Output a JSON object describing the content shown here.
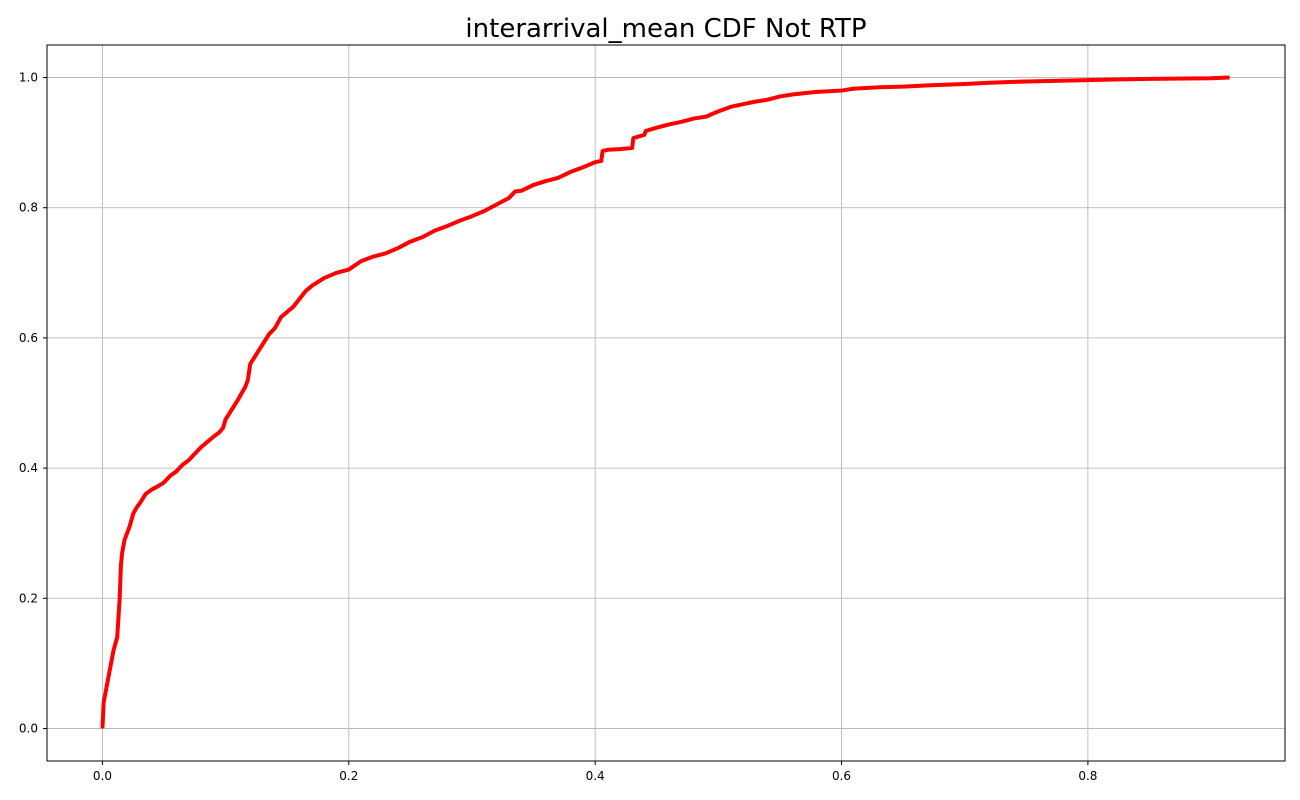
{
  "chart_data": {
    "type": "line",
    "title": "interarrival_mean CDF Not RTP",
    "xlabel": "",
    "ylabel": "",
    "xlim": [
      -0.045,
      0.96
    ],
    "ylim": [
      -0.05,
      1.05
    ],
    "xticks": [
      0.0,
      0.2,
      0.4,
      0.6,
      0.8
    ],
    "xtick_labels": [
      "0.0",
      "0.2",
      "0.4",
      "0.6",
      "0.8"
    ],
    "yticks": [
      0.0,
      0.2,
      0.4,
      0.6,
      0.8,
      1.0
    ],
    "ytick_labels": [
      "0.0",
      "0.2",
      "0.4",
      "0.6",
      "0.8",
      "1.0"
    ],
    "grid": true,
    "legend": "none",
    "series": [
      {
        "color": "#ff0000",
        "x": [
          0.0,
          0.001,
          0.003,
          0.006,
          0.009,
          0.012,
          0.014,
          0.015,
          0.016,
          0.017,
          0.018,
          0.02,
          0.022,
          0.025,
          0.028,
          0.03,
          0.035,
          0.04,
          0.045,
          0.05,
          0.055,
          0.06,
          0.065,
          0.07,
          0.075,
          0.08,
          0.085,
          0.09,
          0.095,
          0.098,
          0.1,
          0.105,
          0.11,
          0.113,
          0.116,
          0.118,
          0.12,
          0.125,
          0.13,
          0.135,
          0.14,
          0.143,
          0.145,
          0.15,
          0.155,
          0.16,
          0.165,
          0.17,
          0.18,
          0.19,
          0.2,
          0.21,
          0.22,
          0.23,
          0.24,
          0.25,
          0.26,
          0.27,
          0.28,
          0.29,
          0.3,
          0.31,
          0.32,
          0.33,
          0.335,
          0.34,
          0.35,
          0.36,
          0.37,
          0.38,
          0.39,
          0.4,
          0.405,
          0.406,
          0.41,
          0.42,
          0.43,
          0.431,
          0.44,
          0.441,
          0.45,
          0.46,
          0.47,
          0.48,
          0.49,
          0.5,
          0.51,
          0.52,
          0.53,
          0.54,
          0.55,
          0.56,
          0.57,
          0.58,
          0.6,
          0.61,
          0.62,
          0.63,
          0.65,
          0.67,
          0.7,
          0.72,
          0.75,
          0.8,
          0.82,
          0.85,
          0.9,
          0.915
        ],
        "y": [
          0.0,
          0.04,
          0.06,
          0.09,
          0.12,
          0.14,
          0.2,
          0.25,
          0.27,
          0.28,
          0.29,
          0.3,
          0.31,
          0.33,
          0.34,
          0.345,
          0.36,
          0.367,
          0.372,
          0.378,
          0.388,
          0.395,
          0.405,
          0.412,
          0.422,
          0.432,
          0.44,
          0.448,
          0.455,
          0.462,
          0.475,
          0.49,
          0.505,
          0.515,
          0.525,
          0.535,
          0.56,
          0.575,
          0.59,
          0.605,
          0.615,
          0.625,
          0.632,
          0.64,
          0.648,
          0.66,
          0.672,
          0.68,
          0.692,
          0.7,
          0.705,
          0.718,
          0.725,
          0.73,
          0.738,
          0.748,
          0.755,
          0.765,
          0.772,
          0.78,
          0.787,
          0.795,
          0.805,
          0.815,
          0.825,
          0.826,
          0.835,
          0.841,
          0.846,
          0.855,
          0.862,
          0.87,
          0.872,
          0.887,
          0.889,
          0.89,
          0.892,
          0.907,
          0.912,
          0.918,
          0.923,
          0.928,
          0.932,
          0.937,
          0.94,
          0.948,
          0.955,
          0.959,
          0.963,
          0.966,
          0.971,
          0.974,
          0.976,
          0.978,
          0.98,
          0.983,
          0.984,
          0.985,
          0.986,
          0.988,
          0.99,
          0.992,
          0.994,
          0.996,
          0.997,
          0.998,
          0.999,
          1.0
        ]
      }
    ]
  }
}
